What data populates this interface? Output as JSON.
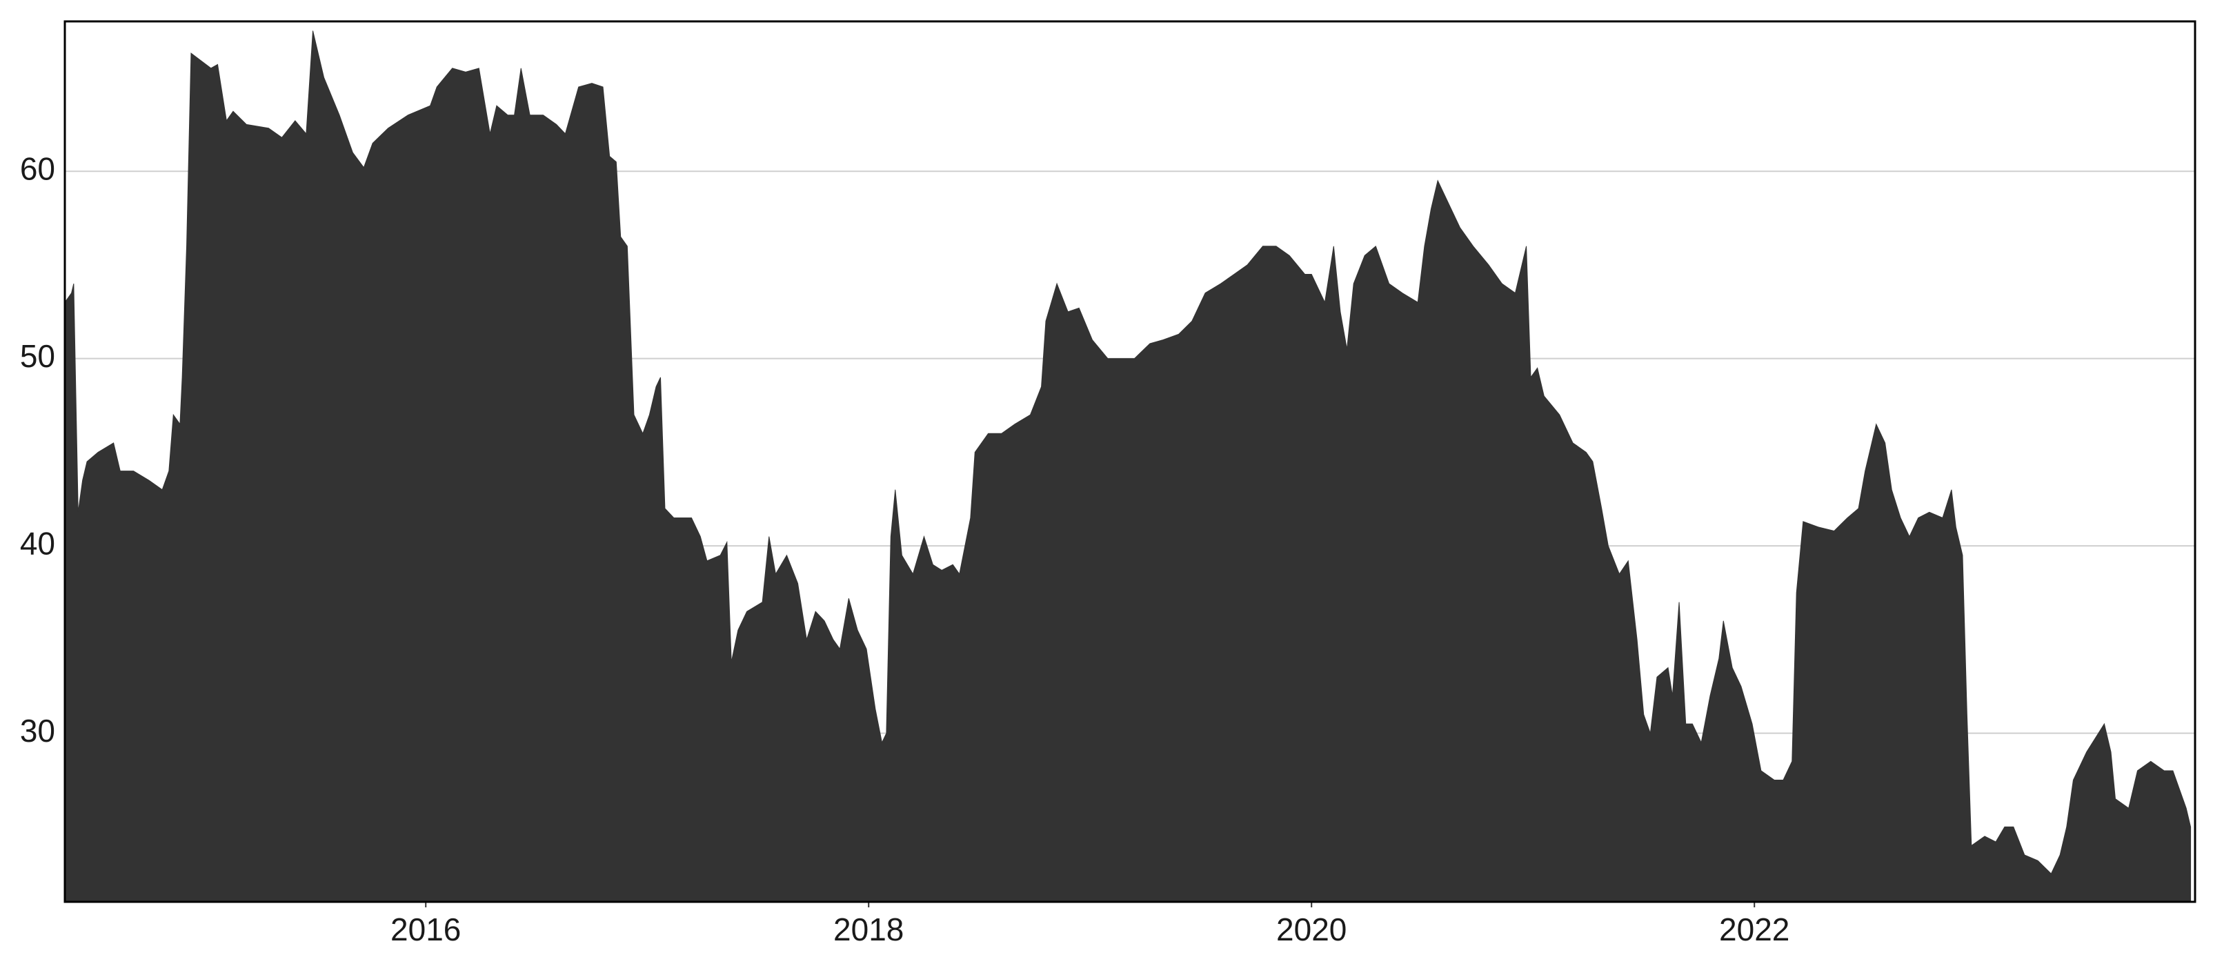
{
  "chart_data": {
    "type": "area",
    "color": "#333333",
    "grid": true,
    "xlim": [
      2014.37,
      2023.99
    ],
    "ylim": [
      21,
      68
    ],
    "xticks": [
      2016,
      2018,
      2020,
      2022
    ],
    "yticks": [
      30,
      40,
      50,
      60
    ],
    "x": [
      2014.37,
      2014.4,
      2014.41,
      2014.43,
      2014.45,
      2014.47,
      2014.52,
      2014.59,
      2014.62,
      2014.68,
      2014.75,
      2014.81,
      2014.84,
      2014.86,
      2014.89,
      2014.9,
      2014.92,
      2014.94,
      2015.03,
      2015.06,
      2015.1,
      2015.13,
      2015.19,
      2015.29,
      2015.35,
      2015.41,
      2015.46,
      2015.49,
      2015.54,
      2015.61,
      2015.67,
      2015.72,
      2015.76,
      2015.83,
      2015.92,
      2016.02,
      2016.05,
      2016.12,
      2016.18,
      2016.24,
      2016.29,
      2016.32,
      2016.37,
      2016.4,
      2016.43,
      2016.47,
      2016.53,
      2016.59,
      2016.63,
      2016.69,
      2016.75,
      2016.8,
      2016.83,
      2016.86,
      2016.88,
      2016.91,
      2016.94,
      2016.98,
      2017.01,
      2017.04,
      2017.06,
      2017.08,
      2017.12,
      2017.2,
      2017.24,
      2017.27,
      2017.33,
      2017.36,
      2017.38,
      2017.41,
      2017.45,
      2017.52,
      2017.55,
      2017.58,
      2017.63,
      2017.68,
      2017.72,
      2017.76,
      2017.8,
      2017.84,
      2017.87,
      2017.91,
      2017.95,
      2017.99,
      2018.03,
      2018.06,
      2018.08,
      2018.1,
      2018.12,
      2018.15,
      2018.2,
      2018.25,
      2018.29,
      2018.33,
      2018.38,
      2018.41,
      2018.46,
      2018.48,
      2018.54,
      2018.6,
      2018.66,
      2018.73,
      2018.78,
      2018.8,
      2018.85,
      2018.9,
      2018.95,
      2019.01,
      2019.08,
      2019.14,
      2019.2,
      2019.27,
      2019.33,
      2019.4,
      2019.46,
      2019.52,
      2019.59,
      2019.65,
      2019.71,
      2019.78,
      2019.84,
      2019.9,
      2019.97,
      2020.0,
      2020.06,
      2020.1,
      2020.13,
      2020.16,
      2020.19,
      2020.24,
      2020.29,
      2020.35,
      2020.41,
      2020.48,
      2020.51,
      2020.54,
      2020.57,
      2020.63,
      2020.67,
      2020.73,
      2020.8,
      2020.86,
      2020.92,
      2020.96,
      2020.97,
      2020.99,
      2021.02,
      2021.05,
      2021.12,
      2021.18,
      2021.24,
      2021.27,
      2021.31,
      2021.34,
      2021.39,
      2021.43,
      2021.47,
      2021.5,
      2021.53,
      2021.56,
      2021.61,
      2021.63,
      2021.66,
      2021.69,
      2021.72,
      2021.76,
      2021.8,
      2021.84,
      2021.86,
      2021.9,
      2021.94,
      2021.99,
      2022.03,
      2022.09,
      2022.13,
      2022.17,
      2022.19,
      2022.22,
      2022.29,
      2022.36,
      2022.42,
      2022.47,
      2022.5,
      2022.55,
      2022.59,
      2022.62,
      2022.66,
      2022.7,
      2022.74,
      2022.79,
      2022.85,
      2022.89,
      2022.91,
      2022.94,
      2022.96,
      2022.98,
      2023.04,
      2023.09,
      2023.13,
      2023.17,
      2023.22,
      2023.28,
      2023.34,
      2023.38,
      2023.41,
      2023.44,
      2023.5,
      2023.58,
      2023.61,
      2023.63,
      2023.69,
      2023.73,
      2023.79,
      2023.85,
      2023.89,
      2023.92,
      2023.95,
      2023.97
    ],
    "values": [
      53,
      53.5,
      54,
      41.8,
      43.5,
      44.5,
      45,
      45.5,
      44,
      44,
      43.5,
      43,
      44,
      47,
      46.5,
      49,
      56,
      66.3,
      65.5,
      65.7,
      62.7,
      63.2,
      62.5,
      62.3,
      61.8,
      62.7,
      62,
      67.5,
      65,
      63,
      61,
      60.2,
      61.5,
      62.3,
      63,
      63.5,
      64.5,
      65.5,
      65.3,
      65.5,
      62,
      63.5,
      63,
      63,
      65.5,
      63,
      63,
      62.5,
      62,
      64.5,
      64.7,
      64.5,
      60.8,
      60.5,
      56.5,
      56,
      47,
      46,
      47,
      48.5,
      49,
      42,
      41.5,
      41.5,
      40.5,
      39.2,
      39.5,
      40.2,
      33.8,
      35.5,
      36.5,
      37,
      40.5,
      38.5,
      39.5,
      38,
      35,
      36.5,
      36,
      35,
      34.5,
      37.2,
      35.5,
      34.5,
      31.3,
      29.5,
      30,
      40.5,
      43,
      39.5,
      38.5,
      40.5,
      39,
      38.7,
      39,
      38.5,
      41.5,
      45,
      46,
      46,
      46.5,
      47,
      48.5,
      52,
      54,
      52.5,
      52.7,
      51,
      50,
      50,
      50,
      50.8,
      51,
      51.3,
      52,
      53.5,
      54,
      54.5,
      55,
      56,
      56,
      55.5,
      54.5,
      54.5,
      53,
      56,
      52.5,
      50.5,
      54,
      55.5,
      56,
      54,
      53.5,
      53,
      56,
      58,
      59.5,
      58,
      57,
      56,
      55,
      54,
      53.5,
      55.5,
      56,
      49,
      49.5,
      48,
      47,
      45.5,
      45,
      44.5,
      42,
      40,
      38.5,
      39.2,
      35,
      31,
      30,
      33,
      33.5,
      32,
      37,
      30.5,
      30.5,
      29.5,
      32,
      34,
      36,
      33.5,
      32.5,
      30.5,
      28,
      27.5,
      27.5,
      28.5,
      37.5,
      41.3,
      41,
      40.8,
      41.5,
      42,
      44,
      46.5,
      45.5,
      43,
      41.5,
      40.5,
      41.5,
      41.8,
      41.5,
      43,
      41,
      39.5,
      31,
      24,
      24.5,
      24.2,
      25,
      25,
      23.5,
      23.2,
      22.5,
      23.5,
      25,
      27.5,
      29,
      30.5,
      29,
      26.5,
      26,
      28,
      28.5,
      28,
      28,
      27,
      26,
      25
    ]
  }
}
